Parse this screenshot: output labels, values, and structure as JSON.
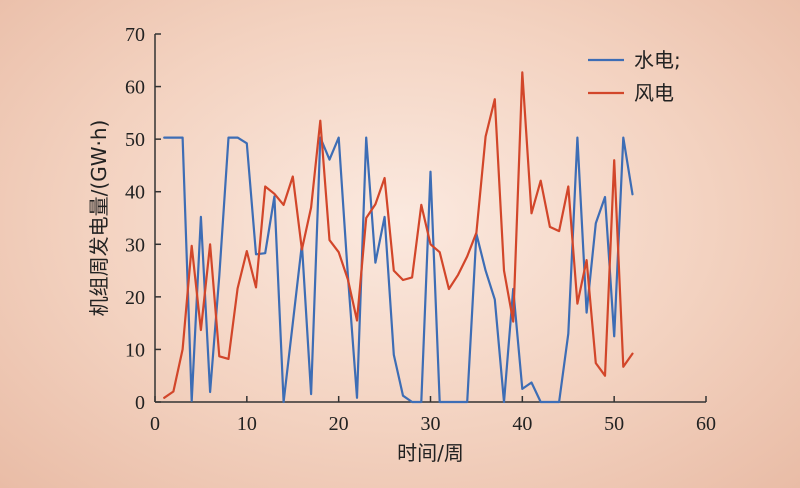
{
  "chart_data": {
    "type": "line",
    "xlabel": "时间/周",
    "ylabel": "机组周发电量/(GW·h)",
    "xlim": [
      0,
      60
    ],
    "ylim": [
      0,
      70
    ],
    "x_ticks": [
      0,
      10,
      20,
      30,
      40,
      50,
      60
    ],
    "y_ticks": [
      0,
      10,
      20,
      30,
      40,
      50,
      60,
      70
    ],
    "grid": false,
    "legend_position": "top-right",
    "x": [
      1,
      2,
      3,
      4,
      5,
      6,
      7,
      8,
      9,
      10,
      11,
      12,
      13,
      14,
      15,
      16,
      17,
      18,
      19,
      20,
      21,
      22,
      23,
      24,
      25,
      26,
      27,
      28,
      29,
      30,
      31,
      32,
      33,
      34,
      35,
      36,
      37,
      38,
      39,
      40,
      41,
      42,
      43,
      44,
      45,
      46,
      47,
      48,
      49,
      50,
      51,
      52
    ],
    "series": [
      {
        "name": "水电;",
        "color": "#3d6db5",
        "values": [
          50.3,
          50.3,
          50.3,
          0.2,
          35.2,
          1.9,
          24,
          50.3,
          50.3,
          49.2,
          28.1,
          28.3,
          39.1,
          0,
          15,
          30,
          1.5,
          50.3,
          46.1,
          50.3,
          24,
          0.8,
          50.3,
          26.5,
          35.2,
          9,
          1.2,
          0,
          0,
          43.8,
          0,
          0,
          0,
          0,
          32,
          25,
          19.5,
          0,
          21.5,
          2.5,
          3.7,
          0,
          0,
          0,
          13,
          50.3,
          17,
          34,
          39,
          12.5,
          50.3,
          39.5
        ]
      },
      {
        "name": "风电",
        "color": "#d2462a",
        "values": [
          0.8,
          2,
          10,
          29.7,
          13.7,
          30,
          8.7,
          8.2,
          21.6,
          28.7,
          21.8,
          41,
          39.6,
          37.5,
          42.9,
          29,
          37,
          53.5,
          30.8,
          28.5,
          23.3,
          15.5,
          35,
          37.6,
          42.6,
          25,
          23.2,
          23.7,
          37.5,
          30,
          28.5,
          21.5,
          24.2,
          27.7,
          32.2,
          50.5,
          57.6,
          25,
          15.3,
          62.7,
          35.9,
          42.1,
          33.3,
          32.5,
          41,
          18.7,
          27,
          7.4,
          5,
          46,
          6.7,
          9.2
        ]
      }
    ]
  }
}
